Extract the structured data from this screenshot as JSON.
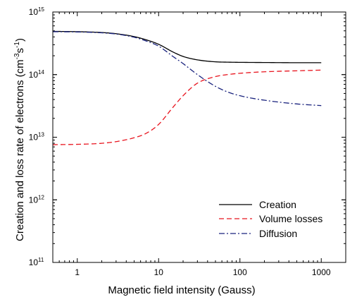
{
  "chart_data": {
    "type": "line",
    "xlabel": "Magnetic field intensity (Gauss)",
    "ylabel": "Creation and loss rate of electrons (cm^-3s^-1)",
    "ylabel_parts": {
      "main": "Creation and loss rate of electrons (cm",
      "sup1": "-3",
      "mid": "s",
      "sup2": "-1",
      "end": ")"
    },
    "x_scale": "log",
    "y_scale": "log",
    "xlim": [
      0.5,
      2000
    ],
    "ylim": [
      100000000000.0,
      1000000000000000.0
    ],
    "x_ticks": [
      1,
      10,
      100,
      1000
    ],
    "x_tick_labels": [
      "1",
      "10",
      "100",
      "1000"
    ],
    "y_ticks": [
      {
        "base": "10",
        "exp": "11",
        "value": 100000000000.0
      },
      {
        "base": "10",
        "exp": "12",
        "value": 1000000000000.0
      },
      {
        "base": "10",
        "exp": "13",
        "value": 10000000000000.0
      },
      {
        "base": "10",
        "exp": "14",
        "value": 100000000000000.0
      },
      {
        "base": "10",
        "exp": "15",
        "value": 1000000000000000.0
      }
    ],
    "grid": false,
    "legend_position": "bottom-right",
    "x": [
      0.5,
      1,
      2,
      3,
      5,
      7,
      10,
      15,
      20,
      30,
      50,
      70,
      100,
      200,
      500,
      1000
    ],
    "series": [
      {
        "name": "Creation",
        "color": "#000000",
        "dash": "solid",
        "values": [
          490000000000000.0,
          485000000000000.0,
          470000000000000.0,
          450000000000000.0,
          405000000000000.0,
          360000000000000.0,
          305000000000000.0,
          230000000000000.0,
          195000000000000.0,
          172000000000000.0,
          160000000000000.0,
          158000000000000.0,
          157000000000000.0,
          156000000000000.0,
          155000000000000.0,
          155000000000000.0
        ]
      },
      {
        "name": "Volume losses",
        "color": "#e8141e",
        "dash": "dashed",
        "values": [
          7600000000000.0,
          7700000000000.0,
          8000000000000.0,
          8500000000000.0,
          9800000000000.0,
          11500000000000.0,
          16000000000000.0,
          30000000000000.0,
          46000000000000.0,
          73000000000000.0,
          93000000000000.0,
          100000000000000.0,
          105000000000000.0,
          111000000000000.0,
          115000000000000.0,
          118000000000000.0
        ]
      },
      {
        "name": "Diffusion",
        "color": "#1a237e",
        "dash": "dashdot",
        "values": [
          485000000000000.0,
          480000000000000.0,
          465000000000000.0,
          445000000000000.0,
          395000000000000.0,
          345000000000000.0,
          285000000000000.0,
          195000000000000.0,
          150000000000000.0,
          100000000000000.0,
          65000000000000.0,
          53000000000000.0,
          46000000000000.0,
          39000000000000.0,
          34000000000000.0,
          32000000000000.0
        ]
      }
    ]
  }
}
